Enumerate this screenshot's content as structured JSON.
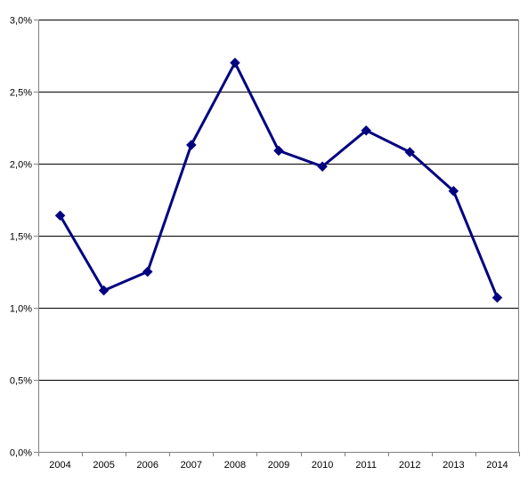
{
  "chart_data": {
    "type": "line",
    "title": "",
    "xlabel": "",
    "ylabel": "",
    "categories": [
      "2004",
      "2005",
      "2006",
      "2007",
      "2008",
      "2009",
      "2010",
      "2011",
      "2012",
      "2013",
      "2014"
    ],
    "series": [
      {
        "values": [
          1.64,
          1.12,
          1.25,
          2.13,
          2.7,
          2.09,
          1.98,
          2.23,
          2.08,
          1.81,
          1.07
        ],
        "color": "#000080",
        "marker": "diamond"
      }
    ],
    "ylim": [
      0,
      3.0
    ],
    "yticks": [
      0,
      0.5,
      1.0,
      1.5,
      2.0,
      2.5,
      3.0
    ],
    "ytick_labels": [
      "0,0%",
      "0,5%",
      "1,0%",
      "1,5%",
      "2,0%",
      "2,5%",
      "3,0%"
    ],
    "grid": "horizontal",
    "legend": "none",
    "gridline_color": "#000000",
    "axis_color": "#808080"
  }
}
